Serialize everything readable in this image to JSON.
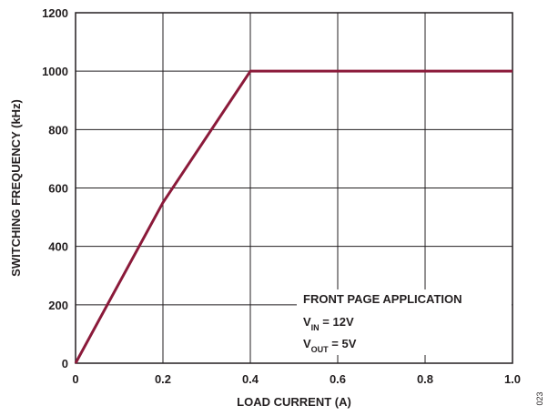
{
  "chart_data": {
    "type": "line",
    "xlabel": "LOAD CURRENT (A)",
    "ylabel": "SWITCHING FREQUENCY (kHz)",
    "xlim": [
      0,
      1.0
    ],
    "ylim": [
      0,
      1200
    ],
    "x_ticks": [
      "0",
      "0.2",
      "0.4",
      "0.6",
      "0.8",
      "1.0"
    ],
    "y_ticks": [
      "0",
      "200",
      "400",
      "600",
      "800",
      "1000",
      "1200"
    ],
    "grid": true,
    "series": [
      {
        "color": "#8b1a3a",
        "points": [
          [
            0,
            0
          ],
          [
            0.2,
            550
          ],
          [
            0.4,
            1000
          ],
          [
            1.0,
            1000
          ]
        ]
      }
    ],
    "annotation": {
      "title": "FRONT PAGE APPLICATION",
      "vin_sym": "V",
      "vin_sub": "IN",
      "vin_val": " = 12V",
      "vout_sym": "V",
      "vout_sub": "OUT",
      "vout_val": " = 5V"
    },
    "figure_id": "023"
  }
}
